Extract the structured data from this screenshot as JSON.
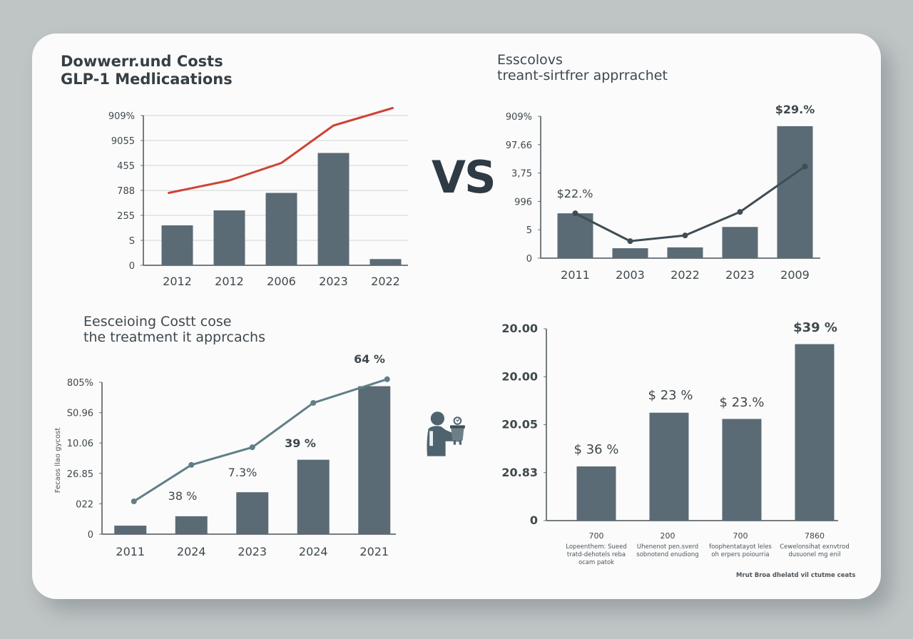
{
  "colors": {
    "background": "#bfc4c5",
    "card": "#fbfbfb",
    "bar": "#5b6b75",
    "red_line": "#cf4336",
    "dark_line": "#3f4d55",
    "teal_line": "#5f7f86",
    "text": "#353f45"
  },
  "vs_label": "VS",
  "icons": {
    "person": "person-holding-pot-icon"
  },
  "chart_data": [
    {
      "id": "top-left",
      "type": "bar",
      "title": [
        "Dowwerr.und Costs",
        "GLP-1 Medlicaations"
      ],
      "categories": [
        "2012",
        "2012",
        "2006",
        "2023",
        "2022"
      ],
      "y_tick_labels": [
        "909%",
        "9055",
        "455",
        "788",
        "255",
        "S",
        "0"
      ],
      "ylim": [
        0,
        6
      ],
      "grid": true,
      "series": [
        {
          "name": "bars",
          "type": "bar",
          "values": [
            1.6,
            2.2,
            2.9,
            4.5,
            0.25
          ]
        },
        {
          "name": "trend",
          "type": "line",
          "color": "red",
          "values": [
            2.9,
            3.4,
            4.1,
            5.6,
            6.3
          ]
        }
      ]
    },
    {
      "id": "top-right",
      "type": "bar",
      "title": [
        "Esscolovs",
        "treant-sirtfrer apprrachet"
      ],
      "categories": [
        "2011",
        "2003",
        "2022",
        "2023",
        "2009"
      ],
      "y_tick_labels": [
        "909%",
        "97.66",
        "3,75",
        "996",
        "5",
        "0"
      ],
      "ylim": [
        0,
        5
      ],
      "grid": false,
      "series": [
        {
          "name": "bars",
          "type": "bar",
          "values": [
            1.58,
            0.35,
            0.38,
            1.1,
            4.65
          ]
        },
        {
          "name": "trend",
          "type": "line",
          "color": "dark",
          "values": [
            1.58,
            0.6,
            0.8,
            1.63,
            3.23
          ]
        }
      ],
      "annotations": [
        {
          "category_index": 0,
          "text": "$22.%"
        },
        {
          "category_index": 4,
          "text": "$29.%"
        }
      ]
    },
    {
      "id": "bottom-left",
      "type": "bar",
      "title": [
        "Eesceioing Costt cose",
        "the treatment it apprcachs"
      ],
      "ylabel": "Fecaos llao gycost",
      "categories": [
        "2011",
        "2024",
        "2023",
        "2024",
        "2021"
      ],
      "y_tick_labels": [
        "805%",
        "S0.96",
        "10.06",
        "26.85",
        "022",
        "0"
      ],
      "ylim": [
        0,
        5
      ],
      "grid": false,
      "series": [
        {
          "name": "bars",
          "type": "bar",
          "values": [
            0.28,
            0.59,
            1.38,
            2.45,
            4.87
          ]
        },
        {
          "name": "trend",
          "type": "line",
          "color": "teal",
          "values": [
            1.08,
            2.28,
            2.86,
            4.32,
            5.1
          ]
        }
      ],
      "annotations": [
        {
          "category_index": 1,
          "text": "38 %"
        },
        {
          "category_index": 2,
          "text": "7.3%"
        },
        {
          "category_index": 3,
          "text": "39 %"
        },
        {
          "category_index": 4,
          "text": "64 %"
        }
      ]
    },
    {
      "id": "bottom-right",
      "type": "bar",
      "title": [],
      "categories": [
        "700",
        "200",
        "700",
        "7860"
      ],
      "category_descriptions": [
        [
          "Lopeenthem: Sueed",
          "tratd-dehotels reba",
          "ocam patok"
        ],
        [
          "Uhenenot pen.sverd",
          "sobnotend enudiong"
        ],
        [
          "foophentatayot leles",
          "oh erpers poiourria"
        ],
        [
          "Cewelonsihat exnvtrod",
          "dusuonel mg enil"
        ]
      ],
      "y_tick_labels": [
        "20.00",
        "20.00",
        "20.05",
        "20.83",
        "0"
      ],
      "ylim": [
        0,
        4
      ],
      "grid": false,
      "series": [
        {
          "name": "bars",
          "type": "bar",
          "values": [
            1.13,
            2.25,
            2.12,
            3.68
          ]
        }
      ],
      "annotations": [
        {
          "category_index": 0,
          "text": "$ 36 %"
        },
        {
          "category_index": 1,
          "text": "$ 23 %"
        },
        {
          "category_index": 2,
          "text": "$ 23.%"
        },
        {
          "category_index": 3,
          "text": "$39 %"
        }
      ],
      "source": "Mrut Broa dhelatd vil ctutme ceats"
    }
  ]
}
